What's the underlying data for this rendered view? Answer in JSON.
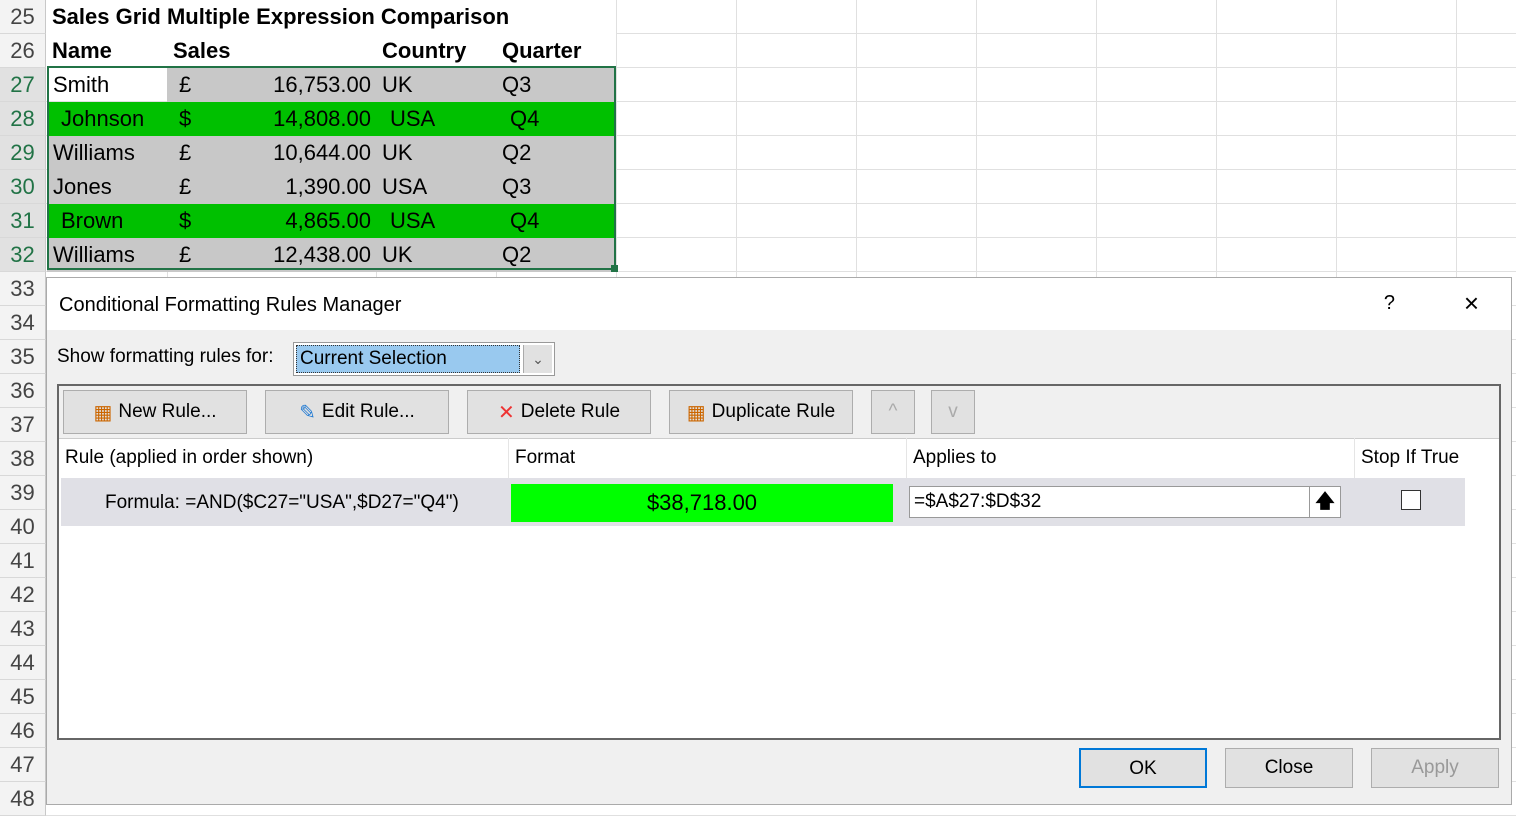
{
  "sheet": {
    "row_numbers": [
      "25",
      "26",
      "27",
      "28",
      "29",
      "30",
      "31",
      "32",
      "33",
      "34",
      "35",
      "36",
      "37",
      "38",
      "39",
      "40",
      "41",
      "42",
      "43",
      "44",
      "45",
      "46",
      "47",
      "48"
    ],
    "title": "Sales Grid Multiple Expression Comparison",
    "headers": [
      "Name",
      "Sales",
      "Country",
      "Quarter"
    ],
    "rows": [
      {
        "name": "Smith",
        "cur": "£",
        "sales": "16,753.00",
        "country": "UK",
        "quarter": "Q3",
        "hl": false
      },
      {
        "name": "Johnson",
        "cur": "$",
        "sales": "14,808.00",
        "country": "USA",
        "quarter": "Q4",
        "hl": true
      },
      {
        "name": "Williams",
        "cur": "£",
        "sales": "10,644.00",
        "country": "UK",
        "quarter": "Q2",
        "hl": false
      },
      {
        "name": "Jones",
        "cur": "£",
        "sales": "1,390.00",
        "country": "USA",
        "quarter": "Q3",
        "hl": false
      },
      {
        "name": "Brown",
        "cur": "$",
        "sales": "4,865.00",
        "country": "USA",
        "quarter": "Q4",
        "hl": true
      },
      {
        "name": "Williams",
        "cur": "£",
        "sales": "12,438.00",
        "country": "UK",
        "quarter": "Q2",
        "hl": false
      }
    ],
    "colors": {
      "highlight": "#00c000",
      "fill": "#c8c8c8",
      "selection": "#217346"
    }
  },
  "dialog": {
    "title": "Conditional Formatting Rules Manager",
    "help": "?",
    "close_icon": "×",
    "show_label": "Show formatting rules for:",
    "show_value": "Current Selection",
    "buttons": {
      "new": "New Rule...",
      "edit": "Edit Rule...",
      "delete": "Delete Rule",
      "duplicate": "Duplicate Rule",
      "up": "^",
      "down": "v"
    },
    "columns": [
      "Rule (applied in order shown)",
      "Format",
      "Applies to",
      "Stop If True"
    ],
    "rule": {
      "formula": "Formula: =AND($C27=\"USA\",$D27=\"Q4\")",
      "format_preview": "$38,718.00",
      "format_color": "#00ff00",
      "applies_to": "=$A$27:$D$32",
      "stop_if_true": false
    },
    "ok": "OK",
    "close": "Close",
    "apply": "Apply"
  }
}
